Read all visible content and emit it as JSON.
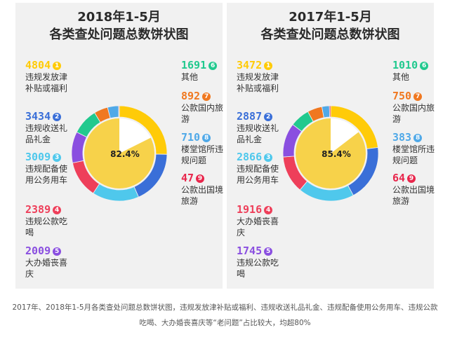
{
  "colors": [
    "#FFCB08",
    "#3A6FD8",
    "#4FC8EC",
    "#EE3F5A",
    "#8A4FE0",
    "#21C98E",
    "#F07820",
    "#50A9E8",
    "#E8254B"
  ],
  "chart_data": [
    {
      "type": "pie",
      "title": "2018年1-5月",
      "subtitle": "各类查处问题总数饼状图",
      "center_label": "82.4%",
      "highlight_percent": 82.4,
      "slices": [
        {
          "index": "1",
          "value": 4804,
          "label": "违规发放津补贴或福利"
        },
        {
          "index": "2",
          "value": 3434,
          "label": "违规收送礼品礼金"
        },
        {
          "index": "3",
          "value": 3009,
          "label": "违规配备使用公务用车"
        },
        {
          "index": "4",
          "value": 2389,
          "label": "违规公款吃喝"
        },
        {
          "index": "5",
          "value": 2009,
          "label": "大办婚丧喜庆"
        },
        {
          "index": "6",
          "value": 1691,
          "label": "其他"
        },
        {
          "index": "7",
          "value": 892,
          "label": "公款国内旅游"
        },
        {
          "index": "8",
          "value": 710,
          "label": "楼堂馆所违规问题"
        },
        {
          "index": "9",
          "value": 47,
          "label": "公款出国境旅游"
        }
      ]
    },
    {
      "type": "pie",
      "title": "2017年1-5月",
      "subtitle": "各类查处问题总数饼状图",
      "center_label": "85.4%",
      "highlight_percent": 85.4,
      "slices": [
        {
          "index": "1",
          "value": 3472,
          "label": "违规发放津补贴或福利"
        },
        {
          "index": "2",
          "value": 2887,
          "label": "违规收送礼品礼金"
        },
        {
          "index": "3",
          "value": 2866,
          "label": "违规配备使用公务用车"
        },
        {
          "index": "4",
          "value": 1916,
          "label": "大办婚丧喜庆"
        },
        {
          "index": "5",
          "value": 1745,
          "label": "违规公款吃喝"
        },
        {
          "index": "6",
          "value": 1010,
          "label": "其他"
        },
        {
          "index": "7",
          "value": 750,
          "label": "公款国内旅游"
        },
        {
          "index": "8",
          "value": 383,
          "label": "楼堂馆所违规问题"
        },
        {
          "index": "9",
          "value": 64,
          "label": "公款出国境旅游"
        }
      ]
    }
  ],
  "caption": "2017年、2018年1-5月各类查处问题总数饼状图，违规发放津补贴或福利、违规收送礼品礼金、违规配备使用公务用车、违规公款吃喝、大办婚丧喜庆等“老问题”占比较大，均超80%"
}
